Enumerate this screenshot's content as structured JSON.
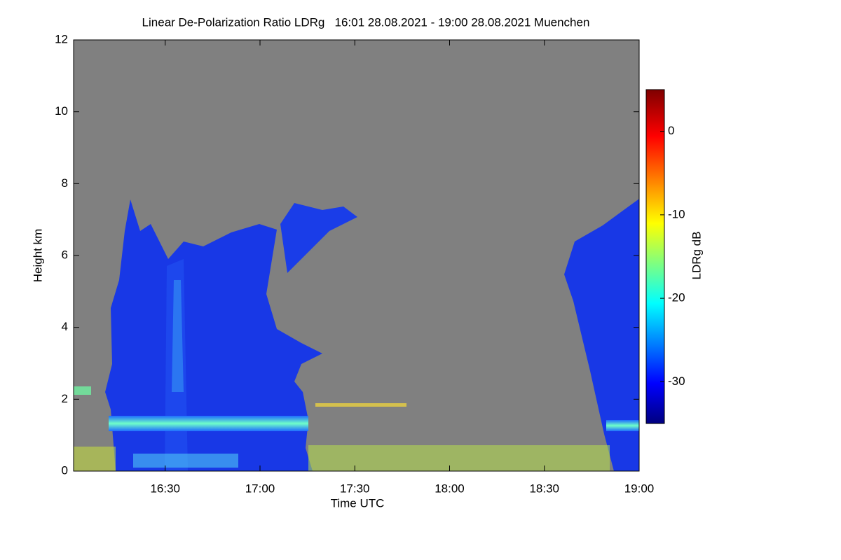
{
  "chart_data": {
    "type": "heatmap",
    "title": "Linear De-Polarization Ratio LDRg   16:01 28.08.2021 - 19:00 28.08.2021 Muenchen",
    "x_label": "Time UTC",
    "y_label": "Height km",
    "colorbar_label": "LDRg dB",
    "xlim": [
      961,
      1140
    ],
    "xticks": [
      {
        "value": 990,
        "label": "16:30"
      },
      {
        "value": 1020,
        "label": "17:00"
      },
      {
        "value": 1050,
        "label": "17:30"
      },
      {
        "value": 1080,
        "label": "18:00"
      },
      {
        "value": 1110,
        "label": "18:30"
      },
      {
        "value": 1140,
        "label": "19:00"
      }
    ],
    "ylim": [
      0,
      12
    ],
    "yticks": [
      0,
      2,
      4,
      6,
      8,
      10,
      12
    ],
    "clim": [
      -35,
      5
    ],
    "cticks": [
      0,
      -10,
      -20,
      -30
    ],
    "background_color": "#808080"
  }
}
